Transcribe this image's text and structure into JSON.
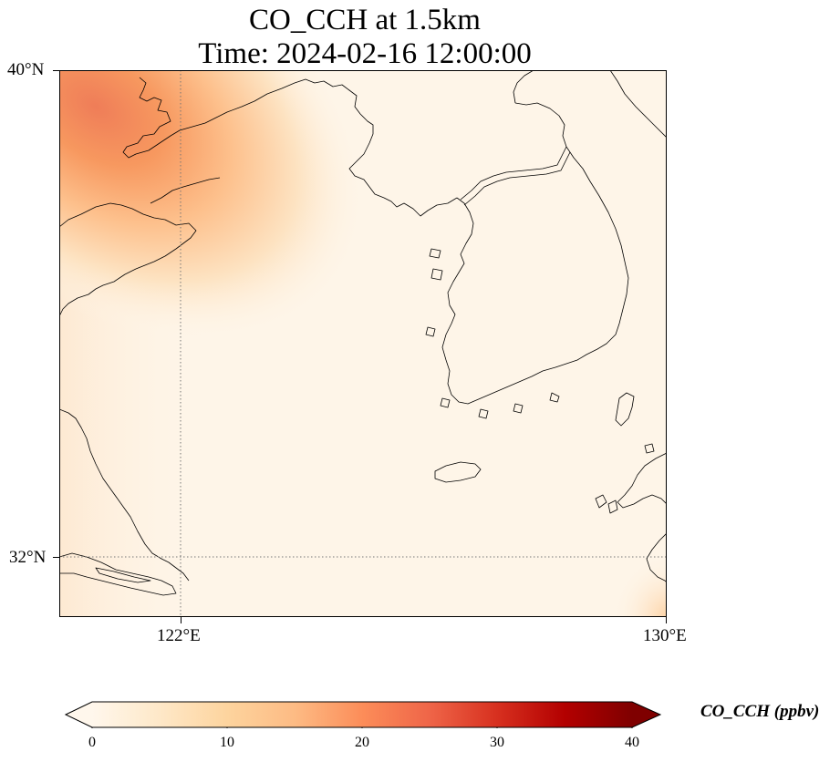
{
  "title": {
    "line1": "CO_CCH at 1.5km",
    "line2": "Time: 2024-02-16 12:00:00"
  },
  "map": {
    "extent": {
      "lon_min": 120,
      "lon_max": 130,
      "lat_min": 31,
      "lat_max": 40
    },
    "gridlines": {
      "style": "dotted",
      "lon": [
        122
      ],
      "lat": [
        32
      ]
    },
    "lat_labels": [
      "40°N",
      "32°N"
    ],
    "lon_labels": [
      "122°E",
      "130°E"
    ]
  },
  "colorbar": {
    "label": "CO_CCH (ppbv)",
    "ticks": [
      "0",
      "10",
      "20",
      "30",
      "40"
    ],
    "range": [
      0,
      40
    ],
    "extend": "both",
    "colormap": "OrRd",
    "colors": [
      "#fff7ec",
      "#fee8c8",
      "#fdd49e",
      "#fdbb84",
      "#fc8d59",
      "#ef6548",
      "#d7301f",
      "#b30000",
      "#7f0000"
    ]
  },
  "field_colors": {
    "background": "#fef5e8",
    "low": "#feeedb",
    "mid": "#fdc48e",
    "high": "#f48a5c",
    "peak": "#ee7d58"
  }
}
